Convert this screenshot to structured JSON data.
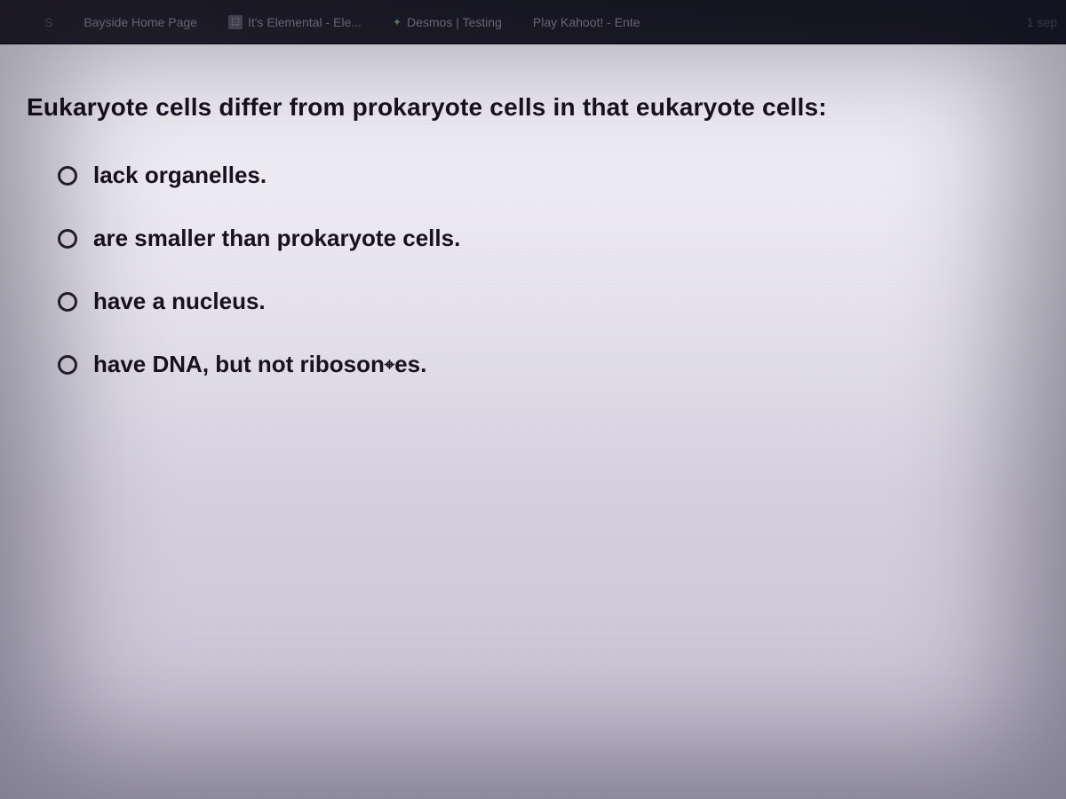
{
  "bookmarks": {
    "item0_label": "S",
    "item1_label": "Bayside Home Page",
    "item2_label": "It's Elemental - Ele...",
    "item3_label": "Desmos | Testing",
    "item4_label": "Play Kahoot! - Ente",
    "item5_label": "1 sep"
  },
  "quiz": {
    "question": "Eukaryote cells differ from prokaryote cells in that eukaryote cells:",
    "options": {
      "a": "lack organelles.",
      "b": "are smaller than prokaryote cells.",
      "c": "have a nucleus.",
      "d_part1": "have DNA, but not riboson",
      "d_part2": "es."
    }
  },
  "colors": {
    "text_primary": "#1a1020",
    "bookmark_text": "#8a8595",
    "radio_border": "#2a202f",
    "content_bg_top": "#f5f3f8",
    "content_bg_bottom": "#c8c3d5",
    "bar_bg": "#201f2a"
  }
}
